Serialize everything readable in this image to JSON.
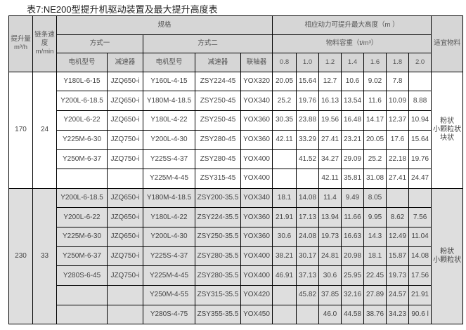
{
  "title": "表7:NE200型提升机驱动装置及最大提升高度表",
  "headers": {
    "capacity": "提升量",
    "capacity_unit": "m³/h",
    "speed": "链条速度",
    "speed_unit": "m/min",
    "spec": "规格",
    "mode1": "方式一",
    "mode2": "方式二",
    "motor": "电机型号",
    "reducer": "减速器",
    "coupling": "联轴器",
    "height": "相应动力可提升最大高度（m ）",
    "density": "物料容重（t/m³）",
    "densities": [
      "0.8",
      "1.0",
      "1.2",
      "1.4",
      "1.6",
      "1.8",
      "2.0"
    ],
    "material": "适宜物料"
  },
  "groups": [
    {
      "capacity": "170",
      "speed": "24",
      "material": [
        "粉状",
        "小颗粒状",
        "块状"
      ],
      "rows": [
        [
          "Y180L-6-15",
          "JZQ650-i",
          "Y160L-4-15",
          "ZSY224-45",
          "YOX320",
          "20.05",
          "15.64",
          "12.7",
          "10.6",
          "9.02",
          "7.8",
          ""
        ],
        [
          "Y200L-6-18.5",
          "JZQ650-i",
          "Y180M-4-18.5",
          "ZSY250-45",
          "YOX340",
          "25.2",
          "19.76",
          "16.13",
          "13.54",
          "11.6",
          "10.09",
          "8.88"
        ],
        [
          "Y200L-6-22",
          "JZQ650-i",
          "Y180L-4-22",
          "ZSY250-45",
          "YOX360",
          "30.35",
          "23.88",
          "19.56",
          "16.48",
          "14.17",
          "12.37",
          "10.94"
        ],
        [
          "Y225M-6-30",
          "JZQ750-i",
          "Y200L-4-30",
          "ZSY280-45",
          "YOX360",
          "42.11",
          "33.29",
          "27.41",
          "23.21",
          "20.05",
          "17.6",
          "15.64"
        ],
        [
          "Y250M-6-37",
          "JZQ750-i",
          "Y225S-4-37",
          "ZSY280-45",
          "YOX400",
          "",
          "41.52",
          "34.27",
          "29.09",
          "25.2",
          "22.18",
          "19.76"
        ],
        [
          "",
          "",
          "Y225M-4-45",
          "ZSY315-45",
          "YOX400",
          "",
          "",
          "42.11",
          "35.81",
          "31.08",
          "27.41",
          "24.47"
        ]
      ]
    },
    {
      "capacity": "230",
      "speed": "33",
      "material": [
        "粉状",
        "小颗粒状"
      ],
      "rows": [
        [
          "Y200L-6-18.5",
          "JZQ650-i",
          "Y180M-4-18.5",
          "ZSY200-35.5",
          "YOX340",
          "18.1",
          "14.08",
          "11.4",
          "9.49",
          "8.05",
          "",
          ""
        ],
        [
          "Y200L-6-22",
          "JZQ650-i",
          "Y180L-4-22",
          "ZSY224-35.5",
          "YOX360",
          "21.91",
          "17.13",
          "13.94",
          "11.66",
          "9.95",
          "8.62",
          "7.56"
        ],
        [
          "Y225M-6-30",
          "JZQ650-i",
          "Y200L-4-30",
          "ZSY250-35.5",
          "YOX360",
          "30.6",
          "24.08",
          "19.73",
          "16.63",
          "14.3",
          "12.49",
          "11.04"
        ],
        [
          "Y250M-6-37",
          "JZQ750-i",
          "Y225S-4-37",
          "ZSY280-35.5",
          "YOX400",
          "38.21",
          "30.17",
          "24.81",
          "20.98",
          "18.1",
          "15.87",
          "14.08"
        ],
        [
          "Y280S-6-45",
          "JZQ750-i",
          "Y225M-4-45",
          "ZSY280-35.5",
          "YOX400",
          "46.91",
          "37.13",
          "30.6",
          "25.95",
          "22.45",
          "19.73",
          "17.56"
        ],
        [
          "",
          "",
          "Y250M-4-55",
          "ZSY315-35.5",
          "YOX420",
          "",
          "45.82",
          "37.85",
          "32.16",
          "27.89",
          "24.57",
          "21.91"
        ],
        [
          "",
          "",
          "Y280S-4-75",
          "ZSY355-35.5",
          "YOX450",
          "",
          "",
          "46.0",
          "44.58",
          "38.76",
          "34.23",
          "90.6 l"
        ]
      ]
    }
  ]
}
